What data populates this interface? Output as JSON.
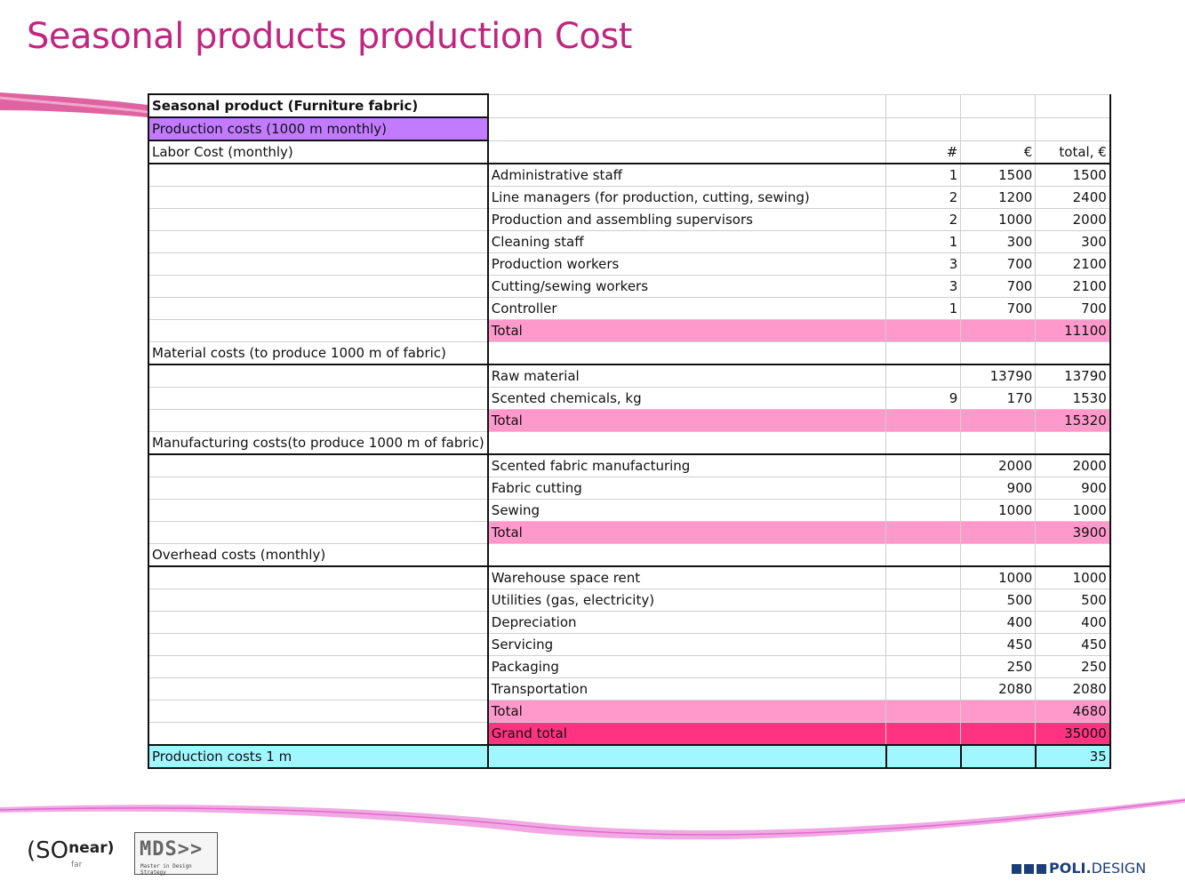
{
  "title": "Seasonal products production Cost",
  "colors": {
    "title": "#c0267f",
    "purple": "#c27bff",
    "pink": "#ff99cc",
    "hot_pink": "#ff3380",
    "cyan": "#9ff7ff"
  },
  "table": {
    "rows": [
      {
        "type": "hdr",
        "c0": "Seasonal product (Furniture fabric)",
        "c1": "",
        "c2": "",
        "c3": "",
        "c4": ""
      },
      {
        "type": "purple",
        "c0": "Production costs (1000 m monthly)",
        "c1": "",
        "c2": "",
        "c3": "",
        "c4": ""
      },
      {
        "type": "section",
        "c0": "Labor Cost (monthly)",
        "c1": "",
        "c2": "#",
        "c3": "€",
        "c4": "total, €"
      },
      {
        "type": "item",
        "c0": "",
        "c1": "Administrative staff",
        "c2": "1",
        "c3": "1500",
        "c4": "1500"
      },
      {
        "type": "item",
        "c0": "",
        "c1": "Line managers (for production, cutting, sewing)",
        "c2": "2",
        "c3": "1200",
        "c4": "2400"
      },
      {
        "type": "item",
        "c0": "",
        "c1": "Production and assembling supervisors",
        "c2": "2",
        "c3": "1000",
        "c4": "2000"
      },
      {
        "type": "item",
        "c0": "",
        "c1": "Cleaning staff",
        "c2": "1",
        "c3": "300",
        "c4": "300"
      },
      {
        "type": "item",
        "c0": "",
        "c1": "Production workers",
        "c2": "3",
        "c3": "700",
        "c4": "2100"
      },
      {
        "type": "item",
        "c0": "",
        "c1": "Cutting/sewing workers",
        "c2": "3",
        "c3": "700",
        "c4": "2100"
      },
      {
        "type": "item",
        "c0": "",
        "c1": "Controller",
        "c2": "1",
        "c3": "700",
        "c4": "700"
      },
      {
        "type": "pink",
        "c0": "",
        "c1": "Total",
        "c2": "",
        "c3": "",
        "c4": "11100"
      },
      {
        "type": "section",
        "c0": "Material costs (to produce 1000 m of fabric)",
        "c1": "",
        "c2": "",
        "c3": "",
        "c4": ""
      },
      {
        "type": "item",
        "c0": "",
        "c1": "Raw material",
        "c2": "",
        "c3": "13790",
        "c4": "13790"
      },
      {
        "type": "item",
        "c0": "",
        "c1": "Scented chemicals, kg",
        "c2": "9",
        "c3": "170",
        "c4": "1530"
      },
      {
        "type": "pink",
        "c0": "",
        "c1": "Total",
        "c2": "",
        "c3": "",
        "c4": "15320"
      },
      {
        "type": "section",
        "c0": "Manufacturing costs(to produce 1000 m of fabric)",
        "c1": "",
        "c2": "",
        "c3": "",
        "c4": ""
      },
      {
        "type": "item",
        "c0": "",
        "c1": "Scented fabric manufacturing",
        "c2": "",
        "c3": "2000",
        "c4": "2000"
      },
      {
        "type": "item",
        "c0": "",
        "c1": "Fabric cutting",
        "c2": "",
        "c3": "900",
        "c4": "900"
      },
      {
        "type": "item",
        "c0": "",
        "c1": "Sewing",
        "c2": "",
        "c3": "1000",
        "c4": "1000"
      },
      {
        "type": "pink",
        "c0": "",
        "c1": "Total",
        "c2": "",
        "c3": "",
        "c4": "3900"
      },
      {
        "type": "section",
        "c0": "Overhead costs (monthly)",
        "c1": "",
        "c2": "",
        "c3": "",
        "c4": ""
      },
      {
        "type": "item",
        "c0": "",
        "c1": "Warehouse space rent",
        "c2": "",
        "c3": "1000",
        "c4": "1000"
      },
      {
        "type": "item",
        "c0": "",
        "c1": "Utilities (gas, electricity)",
        "c2": "",
        "c3": "500",
        "c4": "500"
      },
      {
        "type": "item",
        "c0": "",
        "c1": "Depreciation",
        "c2": "",
        "c3": "400",
        "c4": "400"
      },
      {
        "type": "item",
        "c0": "",
        "c1": "Servicing",
        "c2": "",
        "c3": "450",
        "c4": "450"
      },
      {
        "type": "item",
        "c0": "",
        "c1": "Packaging",
        "c2": "",
        "c3": "250",
        "c4": "250"
      },
      {
        "type": "item",
        "c0": "",
        "c1": "Transportation",
        "c2": "",
        "c3": "2080",
        "c4": "2080"
      },
      {
        "type": "pink",
        "c0": "",
        "c1": "Total",
        "c2": "",
        "c3": "",
        "c4": "4680"
      },
      {
        "type": "hot",
        "c0": "",
        "c1": "Grand total",
        "c2": "",
        "c3": "",
        "c4": "35000"
      },
      {
        "type": "cyan",
        "c0": "Production costs 1 m",
        "c1": "",
        "c2": "",
        "c3": "",
        "c4": "35"
      }
    ]
  },
  "logos": {
    "so": "(SO",
    "near": "near)",
    "far": "far",
    "mds": "MDS>>",
    "mds_sub": "Master in Design Strategy",
    "poli_bold": "POLI.",
    "poli_rest": "DESIGN"
  }
}
